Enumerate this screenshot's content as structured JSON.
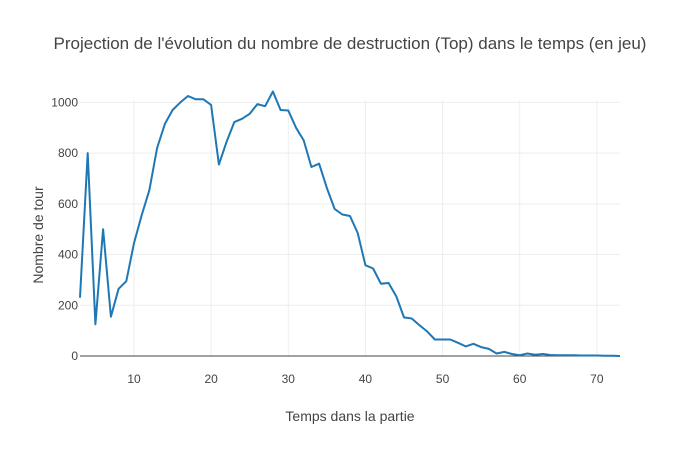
{
  "chart_data": {
    "type": "line",
    "title": "Projection de l'évolution du nombre de destruction (Top) dans le temps (en jeu)",
    "xlabel": "Temps dans la partie",
    "ylabel": "Nombre de tour",
    "xlim": [
      3,
      73
    ],
    "ylim": [
      0,
      1100
    ],
    "x_ticks": [
      10,
      20,
      30,
      40,
      50,
      60,
      70
    ],
    "y_ticks": [
      0,
      200,
      400,
      600,
      800,
      1000
    ],
    "grid": true,
    "line_color": "#1f77b4",
    "series": [
      {
        "x": [
          3,
          4,
          5,
          6,
          7,
          8,
          9,
          10,
          11,
          12,
          13,
          14,
          15,
          16,
          17,
          18,
          19,
          20,
          21,
          22,
          23,
          24,
          25,
          26,
          27,
          28,
          29,
          30,
          31,
          32,
          33,
          34,
          35,
          36,
          37,
          38,
          39,
          40,
          41,
          42,
          43,
          44,
          45,
          46,
          47,
          48,
          49,
          50,
          51,
          52,
          53,
          54,
          55,
          56,
          57,
          58,
          59,
          60,
          61,
          62,
          63,
          64,
          65,
          66,
          67,
          68,
          69,
          70,
          71,
          72,
          73
        ],
        "y": [
          230,
          800,
          125,
          500,
          155,
          265,
          295,
          445,
          555,
          655,
          820,
          915,
          970,
          1000,
          1025,
          1012,
          1012,
          990,
          755,
          845,
          922,
          935,
          955,
          993,
          985,
          1043,
          970,
          968,
          900,
          850,
          745,
          758,
          662,
          580,
          558,
          552,
          485,
          358,
          345,
          285,
          288,
          235,
          152,
          148,
          122,
          97,
          65,
          65,
          65,
          52,
          38,
          48,
          35,
          28,
          10,
          16,
          8,
          3,
          10,
          5,
          8,
          4,
          3,
          3,
          3,
          2,
          2,
          2,
          1,
          1,
          0
        ]
      }
    ]
  }
}
